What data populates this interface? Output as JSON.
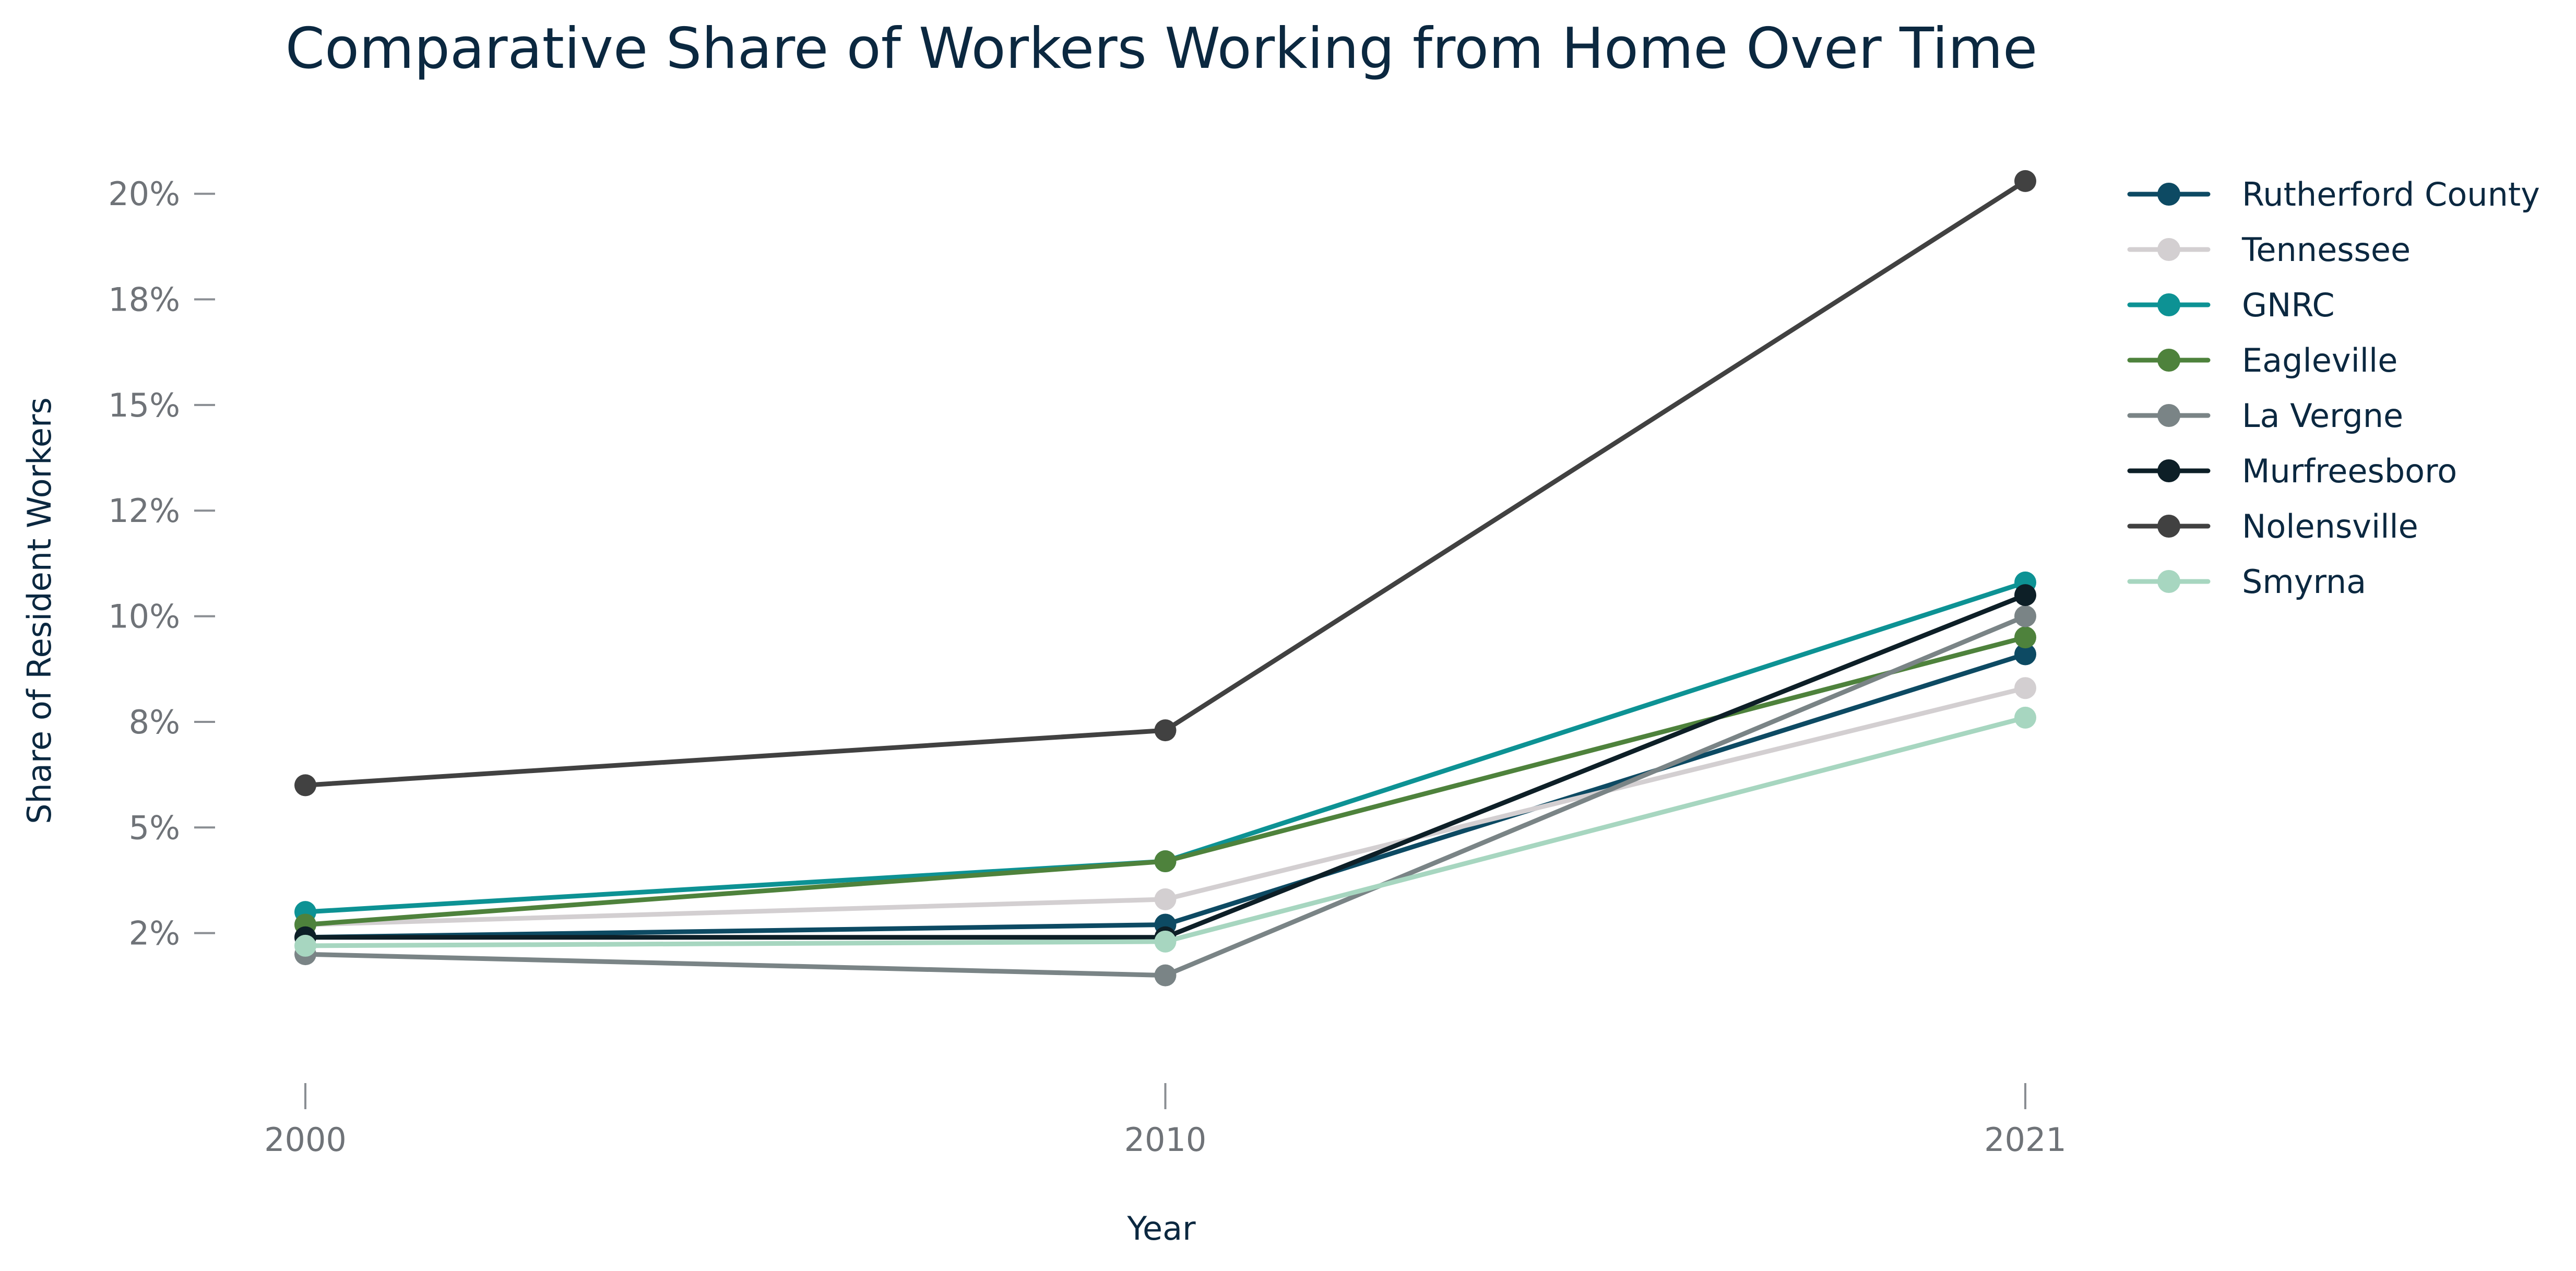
{
  "chart_data": {
    "type": "line",
    "title": "Comparative Share of Workers Working from Home Over Time",
    "xlabel": "Year",
    "ylabel": "Share of Resident Workers",
    "x": [
      "2000",
      "2010",
      "2021"
    ],
    "ylim": [
      0,
      20.2
    ],
    "y_ticks": [
      {
        "value": 2.5,
        "label": "2%"
      },
      {
        "value": 5.0,
        "label": "5%"
      },
      {
        "value": 7.5,
        "label": "8%"
      },
      {
        "value": 10.0,
        "label": "10%"
      },
      {
        "value": 12.5,
        "label": "12%"
      },
      {
        "value": 15.0,
        "label": "15%"
      },
      {
        "value": 17.5,
        "label": "18%"
      },
      {
        "value": 20.0,
        "label": "20%"
      }
    ],
    "grid": false,
    "legend_position": "top-right",
    "series": [
      {
        "name": "Rutherford County",
        "color": "#0d4a63",
        "values": [
          2.4,
          2.7,
          9.1
        ]
      },
      {
        "name": "Tennessee",
        "color": "#d3cfd1",
        "values": [
          2.7,
          3.3,
          8.3
        ]
      },
      {
        "name": "GNRC",
        "color": "#0d9294",
        "values": [
          3.0,
          4.2,
          10.8
        ]
      },
      {
        "name": "Eagleville",
        "color": "#4e823c",
        "values": [
          2.7,
          4.2,
          9.5
        ]
      },
      {
        "name": "La Vergne",
        "color": "#7a8486",
        "values": [
          2.0,
          1.5,
          10.0
        ]
      },
      {
        "name": "Murfreesboro",
        "color": "#0d1f27",
        "values": [
          2.4,
          2.4,
          10.5
        ]
      },
      {
        "name": "Nolensville",
        "color": "#414141",
        "values": [
          6.0,
          7.3,
          20.3
        ]
      },
      {
        "name": "Smyrna",
        "color": "#a7d6c0",
        "values": [
          2.2,
          2.3,
          7.6
        ]
      }
    ]
  }
}
